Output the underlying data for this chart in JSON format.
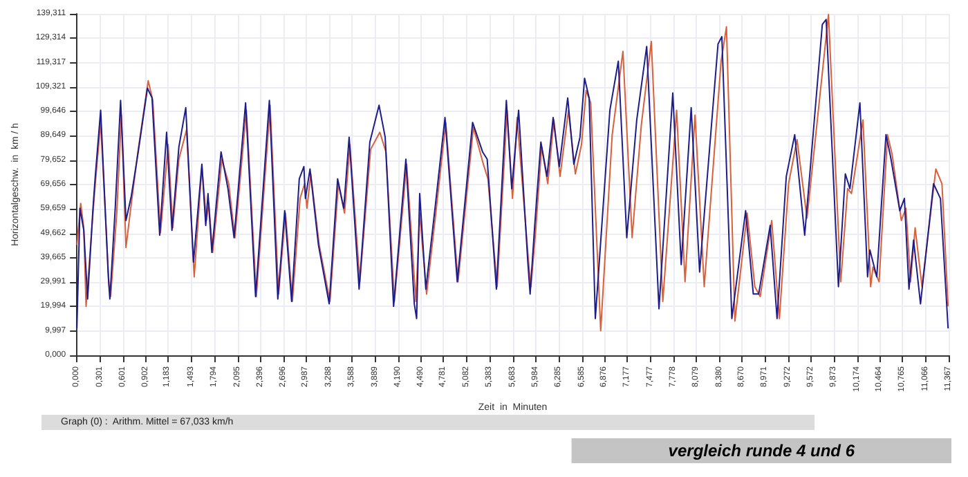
{
  "chart_data": {
    "type": "line",
    "title": "vergleich runde 4 und 6",
    "xlabel": "Zeit  in  Minuten",
    "ylabel": "Horizontalgeschw.  in  km / h",
    "annotations": [
      "Graph (0) :  Arithm. Mittel = 67,033 km/h"
    ],
    "xlim": [
      0,
      11.367
    ],
    "ylim": [
      0,
      139.311
    ],
    "xticks": [
      {
        "value": 0,
        "label": "0,000"
      },
      {
        "value": 0.301,
        "label": "0,301"
      },
      {
        "value": 0.601,
        "label": "0,601"
      },
      {
        "value": 0.902,
        "label": "0,902"
      },
      {
        "value": 1.183,
        "label": "1,183"
      },
      {
        "value": 1.493,
        "label": "1,493"
      },
      {
        "value": 1.794,
        "label": "1,794"
      },
      {
        "value": 2.095,
        "label": "2,095"
      },
      {
        "value": 2.396,
        "label": "2,396"
      },
      {
        "value": 2.696,
        "label": "2,696"
      },
      {
        "value": 2.987,
        "label": "2,987"
      },
      {
        "value": 3.288,
        "label": "3,288"
      },
      {
        "value": 3.588,
        "label": "3,588"
      },
      {
        "value": 3.889,
        "label": "3,889"
      },
      {
        "value": 4.19,
        "label": "4,190"
      },
      {
        "value": 4.49,
        "label": "4,490"
      },
      {
        "value": 4.781,
        "label": "4,781"
      },
      {
        "value": 5.082,
        "label": "5,082"
      },
      {
        "value": 5.383,
        "label": "5,383"
      },
      {
        "value": 5.683,
        "label": "5,683"
      },
      {
        "value": 5.984,
        "label": "5,984"
      },
      {
        "value": 6.285,
        "label": "6,285"
      },
      {
        "value": 6.585,
        "label": "6,585"
      },
      {
        "value": 6.876,
        "label": "6,876"
      },
      {
        "value": 7.177,
        "label": "7,177"
      },
      {
        "value": 7.477,
        "label": "7,477"
      },
      {
        "value": 7.778,
        "label": "7,778"
      },
      {
        "value": 8.079,
        "label": "8,079"
      },
      {
        "value": 8.38,
        "label": "8,380"
      },
      {
        "value": 8.67,
        "label": "8,670"
      },
      {
        "value": 8.971,
        "label": "8,971"
      },
      {
        "value": 9.272,
        "label": "9,272"
      },
      {
        "value": 9.572,
        "label": "9,572"
      },
      {
        "value": 9.873,
        "label": "9,873"
      },
      {
        "value": 10.174,
        "label": "10,174"
      },
      {
        "value": 10.464,
        "label": "10,464"
      },
      {
        "value": 10.765,
        "label": "10,765"
      },
      {
        "value": 11.066,
        "label": "11,066"
      },
      {
        "value": 11.367,
        "label": "11,367"
      }
    ],
    "yticks": [
      {
        "value": 0,
        "label": "0,000"
      },
      {
        "value": 9.997,
        "label": "9,997"
      },
      {
        "value": 19.994,
        "label": "19,994"
      },
      {
        "value": 29.991,
        "label": "29,991"
      },
      {
        "value": 39.665,
        "label": "39,665"
      },
      {
        "value": 49.662,
        "label": "49,662"
      },
      {
        "value": 59.659,
        "label": "59,659"
      },
      {
        "value": 69.656,
        "label": "69,656"
      },
      {
        "value": 79.652,
        "label": "79,652"
      },
      {
        "value": 89.649,
        "label": "89,649"
      },
      {
        "value": 99.646,
        "label": "99,646"
      },
      {
        "value": 109.321,
        "label": "109,321"
      },
      {
        "value": 119.317,
        "label": "119,317"
      },
      {
        "value": 129.314,
        "label": "129,314"
      },
      {
        "value": 139.311,
        "label": "139,311"
      }
    ],
    "grid": true,
    "marker": "none",
    "line_style": "solid",
    "series": [
      {
        "color": "#d9603b",
        "x": [
          0,
          0.05,
          0.09,
          0.12,
          0.21,
          0.24,
          0.31,
          0.42,
          0.44,
          0.52,
          0.58,
          0.64,
          0.71,
          0.8,
          0.93,
          0.99,
          1.09,
          1.19,
          1.25,
          1.33,
          1.43,
          1.53,
          1.63,
          1.69,
          1.72,
          1.77,
          1.89,
          1.98,
          2.06,
          2.21,
          2.34,
          2.52,
          2.63,
          2.72,
          2.81,
          2.91,
          2.97,
          3,
          3.05,
          3.16,
          3.3,
          3.41,
          3.49,
          3.56,
          3.69,
          3.83,
          3.95,
          4.03,
          4.14,
          4.3,
          4.42,
          4.47,
          4.56,
          4.68,
          4.81,
          4.97,
          5.17,
          5.3,
          5.36,
          5.48,
          5.61,
          5.68,
          5.74,
          5.89,
          5.92,
          5.98,
          6.06,
          6.14,
          6.22,
          6.3,
          6.41,
          6.5,
          6.58,
          6.64,
          6.7,
          6.83,
          6.98,
          7.12,
          7.24,
          7.36,
          7.49,
          7.64,
          7.82,
          7.93,
          8.06,
          8.18,
          8.4,
          8.47,
          8.58,
          8.74,
          8.84,
          8.91,
          9.06,
          9.16,
          9.28,
          9.39,
          9.52,
          9.8,
          9.96,
          10.05,
          10.1,
          10.25,
          10.35,
          10.38,
          10.46,
          10.57,
          10.63,
          10.75,
          10.81,
          10.87,
          10.93,
          11.02,
          11.2,
          11.28,
          11.36
        ],
        "values": [
          45,
          62,
          52,
          20,
          58,
          70,
          95,
          28,
          24,
          58,
          98,
          44,
          62,
          84,
          112,
          104,
          50,
          86,
          52,
          80,
          92,
          32,
          77,
          55,
          62,
          42,
          80,
          70,
          48,
          100,
          24,
          102,
          25,
          58,
          22,
          64,
          70,
          60,
          74,
          45,
          22,
          70,
          58,
          86,
          30,
          84,
          91,
          83,
          22,
          78,
          22,
          58,
          25,
          58,
          95,
          30,
          93,
          78,
          72,
          28,
          100,
          64,
          97,
          38,
          28,
          50,
          85,
          70,
          96,
          73,
          100,
          74,
          86,
          108,
          103,
          10,
          90,
          124,
          48,
          94,
          128,
          22,
          100,
          30,
          98,
          28,
          120,
          134,
          14,
          58,
          28,
          24,
          55,
          15,
          70,
          88,
          56,
          139,
          30,
          68,
          66,
          96,
          28,
          36,
          30,
          90,
          82,
          55,
          60,
          30,
          52,
          28,
          76,
          70,
          20
        ]
      },
      {
        "color": "#1c1c8a",
        "x": [
          0,
          0.04,
          0.09,
          0.14,
          0.21,
          0.24,
          0.31,
          0.41,
          0.43,
          0.5,
          0.57,
          0.64,
          0.71,
          0.8,
          0.92,
          0.98,
          1.08,
          1.17,
          1.24,
          1.33,
          1.42,
          1.52,
          1.63,
          1.68,
          1.71,
          1.76,
          1.88,
          1.97,
          2.05,
          2.2,
          2.33,
          2.51,
          2.62,
          2.71,
          2.8,
          2.9,
          2.96,
          2.98,
          3.04,
          3.15,
          3.29,
          3.4,
          3.48,
          3.55,
          3.68,
          3.82,
          3.94,
          4.02,
          4.13,
          4.29,
          4.4,
          4.43,
          4.47,
          4.55,
          4.67,
          4.8,
          4.96,
          5.16,
          5.29,
          5.35,
          5.47,
          5.6,
          5.67,
          5.76,
          5.88,
          5.91,
          5.97,
          6.05,
          6.13,
          6.21,
          6.29,
          6.4,
          6.48,
          6.56,
          6.62,
          6.68,
          6.76,
          6.95,
          7.06,
          7.17,
          7.3,
          7.43,
          7.59,
          7.77,
          7.88,
          8.01,
          8.12,
          8.36,
          8.41,
          8.54,
          8.72,
          8.82,
          8.89,
          9.04,
          9.13,
          9.25,
          9.36,
          9.49,
          9.72,
          9.77,
          9.93,
          10.02,
          10.08,
          10.21,
          10.31,
          10.34,
          10.43,
          10.55,
          10.61,
          10.73,
          10.79,
          10.85,
          10.91,
          11,
          11.17,
          11.26,
          11.36
        ],
        "values": [
          11,
          60,
          51,
          23,
          60,
          73,
          100,
          32,
          23,
          60,
          104,
          55,
          65,
          83,
          109,
          105,
          49,
          91,
          51,
          85,
          101,
          38,
          78,
          53,
          66,
          42,
          83,
          68,
          48,
          103,
          24,
          104,
          23,
          59,
          22,
          72,
          77,
          64,
          76,
          45,
          21,
          72,
          60,
          89,
          27,
          87,
          102,
          89,
          20,
          80,
          21,
          15,
          66,
          27,
          60,
          97,
          30,
          95,
          83,
          80,
          27,
          104,
          68,
          100,
          38,
          25,
          53,
          87,
          73,
          97,
          77,
          105,
          78,
          89,
          113,
          105,
          15,
          100,
          120,
          48,
          96,
          126,
          19,
          107,
          37,
          101,
          34,
          127,
          130,
          15,
          59,
          25,
          25,
          53,
          15,
          73,
          90,
          49,
          135,
          137,
          28,
          74,
          68,
          103,
          32,
          43,
          32,
          90,
          81,
          59,
          64,
          27,
          47,
          21,
          70,
          64,
          11
        ]
      }
    ]
  }
}
